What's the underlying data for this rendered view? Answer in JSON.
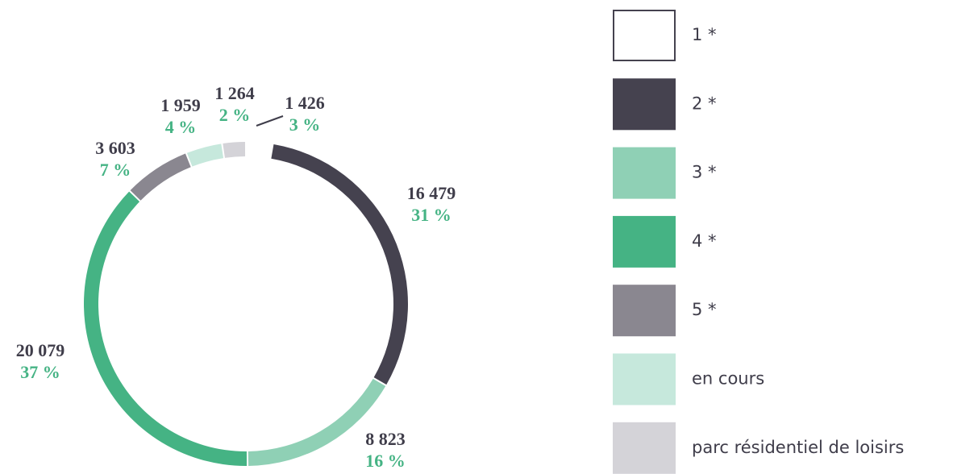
{
  "chart_data": {
    "type": "donut",
    "categories": [
      "1 *",
      "2 *",
      "3 *",
      "4 *",
      "5 *",
      "en cours",
      "parc résidentiel de loisirs"
    ],
    "values": [
      1426,
      16479,
      8823,
      20079,
      3603,
      1959,
      1264
    ],
    "value_labels": [
      "1 426",
      "16 479",
      "8 823",
      "20 079",
      "3 603",
      "1 959",
      "1 264"
    ],
    "percents": [
      3,
      31,
      16,
      37,
      7,
      4,
      2
    ],
    "percent_labels": [
      "3 %",
      "31 %",
      "16 %",
      "37 %",
      "7 %",
      "4 %",
      "2 %"
    ],
    "colors": [
      "#ffffff",
      "#45424f",
      "#8fd0b5",
      "#45b384",
      "#8a8790",
      "#c6e8dc",
      "#d4d3d8"
    ],
    "legend": "right"
  }
}
